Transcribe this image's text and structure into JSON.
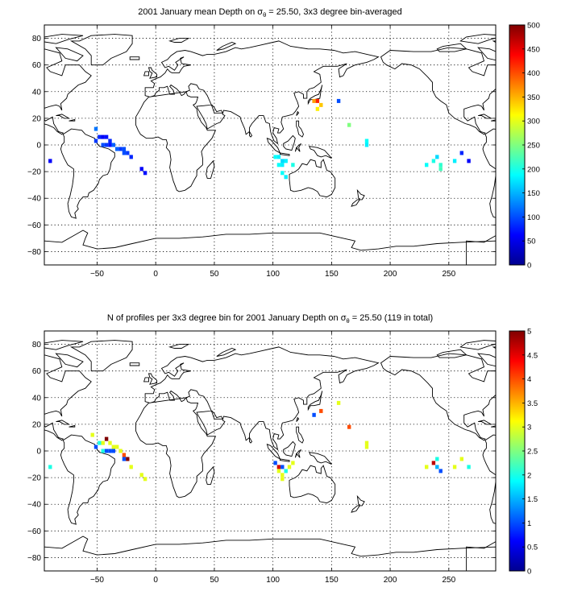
{
  "chart_data": [
    {
      "type": "heatmap",
      "title": {
        "prefix": "2001 January mean Depth on ",
        "symbol": "σ",
        "subscript": "θ",
        "suffix": " = 25.50, 3x3 degree bin-averaged"
      },
      "xlabel": "",
      "ylabel": "",
      "xlim": [
        -95,
        290
      ],
      "ylim": [
        -90,
        90
      ],
      "xticks": [
        -50,
        0,
        50,
        100,
        150,
        200,
        250
      ],
      "yticks": [
        80,
        60,
        40,
        20,
        0,
        -20,
        -40,
        -60,
        -80
      ],
      "grid": true,
      "colorbar": {
        "colormap": "jet",
        "range": [
          0,
          500
        ],
        "ticks": [
          0,
          50,
          100,
          150,
          200,
          250,
          300,
          350,
          400,
          450,
          500
        ]
      },
      "cells": [
        {
          "lon": -90,
          "lat": -12,
          "value": 60
        },
        {
          "lon": -51,
          "lat": 12,
          "value": 120
        },
        {
          "lon": -51,
          "lat": 3,
          "value": 90
        },
        {
          "lon": -48,
          "lat": 6,
          "value": 80
        },
        {
          "lon": -45,
          "lat": 6,
          "value": 60
        },
        {
          "lon": -42,
          "lat": 6,
          "value": 70
        },
        {
          "lon": -39,
          "lat": 3,
          "value": 80
        },
        {
          "lon": -45,
          "lat": 0,
          "value": 100
        },
        {
          "lon": -42,
          "lat": 0,
          "value": 90
        },
        {
          "lon": -39,
          "lat": 0,
          "value": 70
        },
        {
          "lon": -36,
          "lat": 0,
          "value": 110
        },
        {
          "lon": -33,
          "lat": -3,
          "value": 110
        },
        {
          "lon": -30,
          "lat": -3,
          "value": 90
        },
        {
          "lon": -27,
          "lat": -3,
          "value": 100
        },
        {
          "lon": -24,
          "lat": -6,
          "value": 90
        },
        {
          "lon": -27,
          "lat": -6,
          "value": 100
        },
        {
          "lon": -21,
          "lat": -9,
          "value": 80
        },
        {
          "lon": -12,
          "lat": -18,
          "value": 60
        },
        {
          "lon": -9,
          "lat": -21,
          "value": 70
        },
        {
          "lon": 102,
          "lat": -9,
          "value": 190
        },
        {
          "lon": 105,
          "lat": -9,
          "value": 180
        },
        {
          "lon": 108,
          "lat": -12,
          "value": 170
        },
        {
          "lon": 111,
          "lat": -12,
          "value": 180
        },
        {
          "lon": 108,
          "lat": -15,
          "value": 180
        },
        {
          "lon": 105,
          "lat": -15,
          "value": 190
        },
        {
          "lon": 108,
          "lat": -21,
          "value": 190
        },
        {
          "lon": 111,
          "lat": -24,
          "value": 180
        },
        {
          "lon": 117,
          "lat": -15,
          "value": 200
        },
        {
          "lon": 135,
          "lat": 33,
          "value": 360
        },
        {
          "lon": 138,
          "lat": 33,
          "value": 420
        },
        {
          "lon": 141,
          "lat": 30,
          "value": 340
        },
        {
          "lon": 138,
          "lat": 27,
          "value": 320
        },
        {
          "lon": 156,
          "lat": 33,
          "value": 100
        },
        {
          "lon": 165,
          "lat": 15,
          "value": 250
        },
        {
          "lon": 180,
          "lat": 3,
          "value": 190
        },
        {
          "lon": 180,
          "lat": 0,
          "value": 180
        },
        {
          "lon": 231,
          "lat": -15,
          "value": 190
        },
        {
          "lon": 237,
          "lat": -12,
          "value": 200
        },
        {
          "lon": 240,
          "lat": -9,
          "value": 170
        },
        {
          "lon": 243,
          "lat": -15,
          "value": 210
        },
        {
          "lon": 243,
          "lat": -18,
          "value": 220
        },
        {
          "lon": 255,
          "lat": -12,
          "value": 180
        },
        {
          "lon": 261,
          "lat": -6,
          "value": 80
        },
        {
          "lon": 267,
          "lat": -12,
          "value": 60
        }
      ]
    },
    {
      "type": "heatmap",
      "title": {
        "prefix": "N of profiles per 3x3 degree bin for 2001 January Depth on ",
        "symbol": "σ",
        "subscript": "θ",
        "suffix": " = 25.50 (119 in total)"
      },
      "xlabel": "",
      "ylabel": "",
      "xlim": [
        -95,
        290
      ],
      "ylim": [
        -90,
        90
      ],
      "xticks": [
        -50,
        0,
        50,
        100,
        150,
        200,
        250
      ],
      "yticks": [
        80,
        60,
        40,
        20,
        0,
        -20,
        -40,
        -60,
        -80
      ],
      "grid": true,
      "colorbar": {
        "colormap": "jet",
        "range": [
          0,
          5
        ],
        "ticks": [
          0,
          0.5,
          1,
          1.5,
          2,
          2.5,
          3,
          3.5,
          4,
          4.5,
          5
        ]
      },
      "cells": [
        {
          "lon": -90,
          "lat": -12,
          "value": 2
        },
        {
          "lon": -54,
          "lat": 12,
          "value": 3
        },
        {
          "lon": -51,
          "lat": 3,
          "value": 1
        },
        {
          "lon": -48,
          "lat": 6,
          "value": 2
        },
        {
          "lon": -45,
          "lat": 6,
          "value": 3
        },
        {
          "lon": -42,
          "lat": 9,
          "value": 5
        },
        {
          "lon": -39,
          "lat": 6,
          "value": 3
        },
        {
          "lon": -36,
          "lat": 3,
          "value": 3
        },
        {
          "lon": -45,
          "lat": 0,
          "value": 2
        },
        {
          "lon": -42,
          "lat": 0,
          "value": 1
        },
        {
          "lon": -39,
          "lat": 0,
          "value": 1
        },
        {
          "lon": -36,
          "lat": 0,
          "value": 1
        },
        {
          "lon": -33,
          "lat": 3,
          "value": 3
        },
        {
          "lon": -30,
          "lat": 0,
          "value": 3
        },
        {
          "lon": -27,
          "lat": -3,
          "value": 4
        },
        {
          "lon": -24,
          "lat": -6,
          "value": 5
        },
        {
          "lon": -27,
          "lat": -6,
          "value": 1
        },
        {
          "lon": -21,
          "lat": -12,
          "value": 3
        },
        {
          "lon": -12,
          "lat": -18,
          "value": 3
        },
        {
          "lon": -9,
          "lat": -21,
          "value": 3
        },
        {
          "lon": 102,
          "lat": -9,
          "value": 1
        },
        {
          "lon": 105,
          "lat": -12,
          "value": 4.6
        },
        {
          "lon": 108,
          "lat": -12,
          "value": 1
        },
        {
          "lon": 105,
          "lat": -15,
          "value": 3
        },
        {
          "lon": 108,
          "lat": -18,
          "value": 3
        },
        {
          "lon": 111,
          "lat": -15,
          "value": 2
        },
        {
          "lon": 114,
          "lat": -12,
          "value": 3
        },
        {
          "lon": 117,
          "lat": -9,
          "value": 3
        },
        {
          "lon": 108,
          "lat": -21,
          "value": 3
        },
        {
          "lon": 135,
          "lat": 27,
          "value": 1
        },
        {
          "lon": 141,
          "lat": 30,
          "value": 4
        },
        {
          "lon": 156,
          "lat": 36,
          "value": 3
        },
        {
          "lon": 165,
          "lat": 18,
          "value": 4
        },
        {
          "lon": 180,
          "lat": 6,
          "value": 3
        },
        {
          "lon": 180,
          "lat": 3,
          "value": 3
        },
        {
          "lon": 231,
          "lat": -12,
          "value": 3
        },
        {
          "lon": 237,
          "lat": -9,
          "value": 4.7
        },
        {
          "lon": 240,
          "lat": -6,
          "value": 2
        },
        {
          "lon": 240,
          "lat": -12,
          "value": 1.5
        },
        {
          "lon": 243,
          "lat": -15,
          "value": 1
        },
        {
          "lon": 255,
          "lat": -12,
          "value": 3
        },
        {
          "lon": 261,
          "lat": -6,
          "value": 3
        },
        {
          "lon": 267,
          "lat": -12,
          "value": 2
        }
      ]
    }
  ]
}
